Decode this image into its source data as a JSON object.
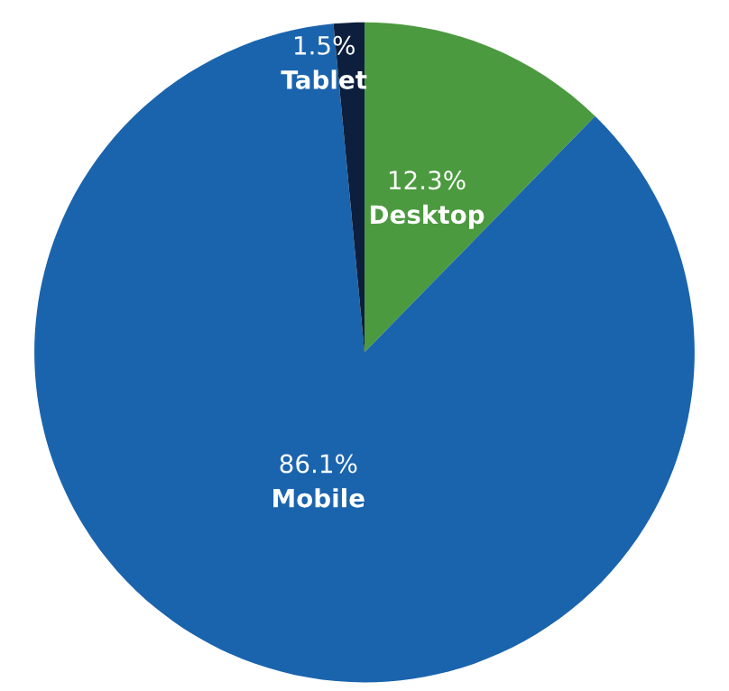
{
  "chart_data": {
    "type": "pie",
    "categories": [
      "Desktop",
      "Mobile",
      "Tablet"
    ],
    "values": [
      12.3,
      86.1,
      1.5
    ],
    "value_labels": [
      "12.3%",
      "86.1%",
      "1.5%"
    ],
    "colors": [
      "#4c9a3f",
      "#1a64ad",
      "#0d1f3c"
    ]
  }
}
